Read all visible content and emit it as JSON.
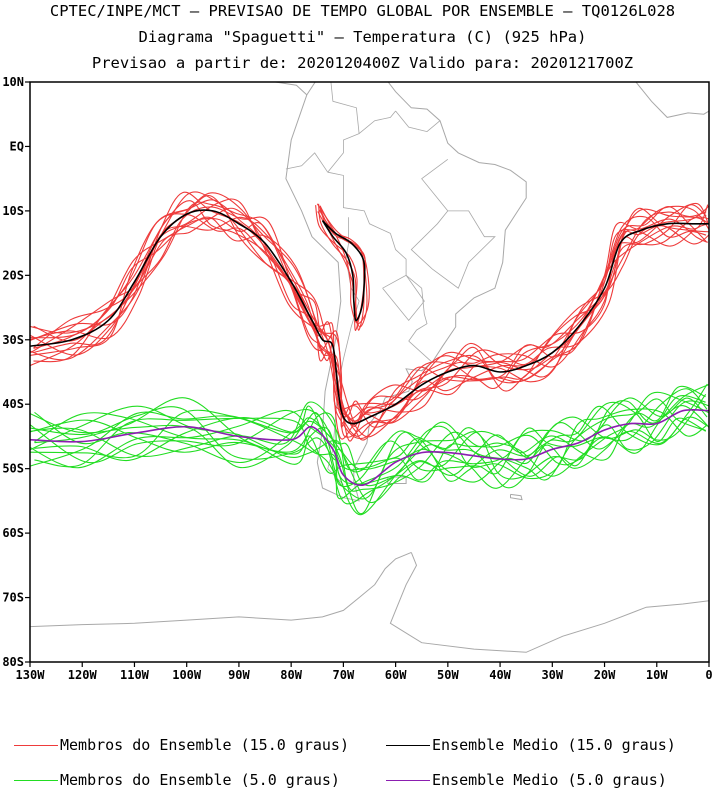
{
  "header": {
    "line1": "CPTEC/INPE/MCT — PREVISAO DE TEMPO GLOBAL POR ENSEMBLE — TQ0126L028",
    "line2": "Diagrama \"Spaguetti\" — Temperatura (C) (925 hPa)",
    "line3": "Previsao a partir de: 2020120400Z  Valido para: 2020121700Z"
  },
  "axes": {
    "lat_labels": [
      "10N",
      "EQ",
      "10S",
      "20S",
      "30S",
      "40S",
      "50S",
      "60S",
      "70S",
      "80S"
    ],
    "lon_labels": [
      "130W",
      "120W",
      "110W",
      "100W",
      "90W",
      "80W",
      "70W",
      "60W",
      "50W",
      "40W",
      "30W",
      "20W",
      "10W",
      "0"
    ],
    "lon_range": [
      -130,
      0
    ],
    "lat_range": [
      -80,
      10
    ]
  },
  "legend": {
    "red_members": "Membros do Ensemble (15.0 graus)",
    "black_mean": "Ensemble Medio (15.0 graus)",
    "green_members": "Membros do Ensemble (5.0 graus)",
    "purple_mean": "Ensemble Medio (5.0 graus)"
  },
  "colors": {
    "red": "#ee3b3b",
    "black": "#000000",
    "green": "#22dd22",
    "purple": "#8b1eb0",
    "coast": "#a8a8a8"
  },
  "chart_data": {
    "type": "line",
    "x_unit": "longitude (deg, W negative)",
    "y_unit": "latitude (deg, S negative)",
    "series": [
      {
        "name": "Ensemble Medio (15.0 graus)",
        "x": [
          -130,
          -122,
          -115,
          -110,
          -105,
          -100,
          -95,
          -90,
          -85,
          -80,
          -76,
          -74,
          -72,
          -71,
          -70,
          -68,
          -65,
          -60,
          -55,
          -50,
          -45,
          -40,
          -35,
          -30,
          -25,
          -20,
          -17,
          -13,
          -8,
          -3,
          0
        ],
        "y": [
          -31,
          -30,
          -27,
          -21,
          -14,
          -10.5,
          -10,
          -12,
          -15,
          -21,
          -27,
          -30,
          -31,
          -38,
          -42,
          -43,
          -42,
          -40,
          -37,
          -35,
          -34,
          -35,
          -34,
          -32,
          -28,
          -22,
          -15,
          -13,
          -12,
          -12,
          -12
        ]
      },
      {
        "name": "Ensemble Medio (5.0 graus)",
        "x": [
          -130,
          -120,
          -110,
          -100,
          -90,
          -80,
          -76,
          -72,
          -70,
          -66,
          -60,
          -55,
          -50,
          -45,
          -40,
          -35,
          -30,
          -25,
          -20,
          -15,
          -10,
          -5,
          0
        ],
        "y": [
          -45.5,
          -45.8,
          -44.5,
          -43.5,
          -45,
          -45.5,
          -43.5,
          -47,
          -51,
          -52.5,
          -49,
          -47.5,
          -47.5,
          -48,
          -48.5,
          -48.5,
          -47,
          -46,
          -44,
          -43,
          -43,
          -41,
          -41
        ]
      }
    ],
    "member_counts": {
      "red": 14,
      "green": 14
    }
  }
}
